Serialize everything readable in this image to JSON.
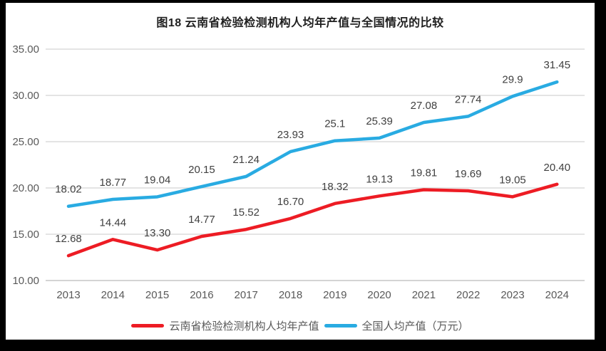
{
  "frame": {
    "background": "#000000",
    "panel_background": "#ffffff"
  },
  "chart_data": {
    "type": "line",
    "title": "图18  云南省检验检测机构人均年产值与全国情况的比较",
    "categories": [
      "2013",
      "2014",
      "2015",
      "2016",
      "2017",
      "2018",
      "2019",
      "2020",
      "2021",
      "2022",
      "2023",
      "2024"
    ],
    "series": [
      {
        "name": "云南省检验检测机构人均年产值",
        "color": "#ed1c24",
        "values": [
          12.68,
          14.44,
          13.3,
          14.77,
          15.52,
          16.7,
          18.32,
          19.13,
          19.81,
          19.69,
          19.05,
          20.4
        ],
        "labels": [
          "12.68",
          "14.44",
          "13.30",
          "14.77",
          "15.52",
          "16.70",
          "18.32",
          "19.13",
          "19.81",
          "19.69",
          "19.05",
          "20.40"
        ]
      },
      {
        "name": "全国人均产值（万元）",
        "color": "#29abe2",
        "values": [
          18.02,
          18.77,
          19.04,
          20.15,
          21.24,
          23.93,
          25.1,
          25.39,
          27.08,
          27.74,
          29.9,
          31.45
        ],
        "labels": [
          "18.02",
          "18.77",
          "19.04",
          "20.15",
          "21.24",
          "23.93",
          "25.1",
          "25.39",
          "27.08",
          "27.74",
          "29.9",
          "31.45"
        ]
      }
    ],
    "ylim": [
      10,
      35
    ],
    "yticks": [
      {
        "value": 35,
        "label": "35.00"
      },
      {
        "value": 30,
        "label": "30.00"
      },
      {
        "value": 25,
        "label": "25.00"
      },
      {
        "value": 20,
        "label": "20.00"
      },
      {
        "value": 15,
        "label": "15.00"
      },
      {
        "value": 10,
        "label": "10.00"
      }
    ],
    "grid": true,
    "legend_position": "bottom",
    "colors": {
      "gridline": "#dbdbdb",
      "axis_line": "#c6c6c6",
      "tick_label": "#595959",
      "data_label": "#404040",
      "title": "#1f1f1f"
    }
  }
}
